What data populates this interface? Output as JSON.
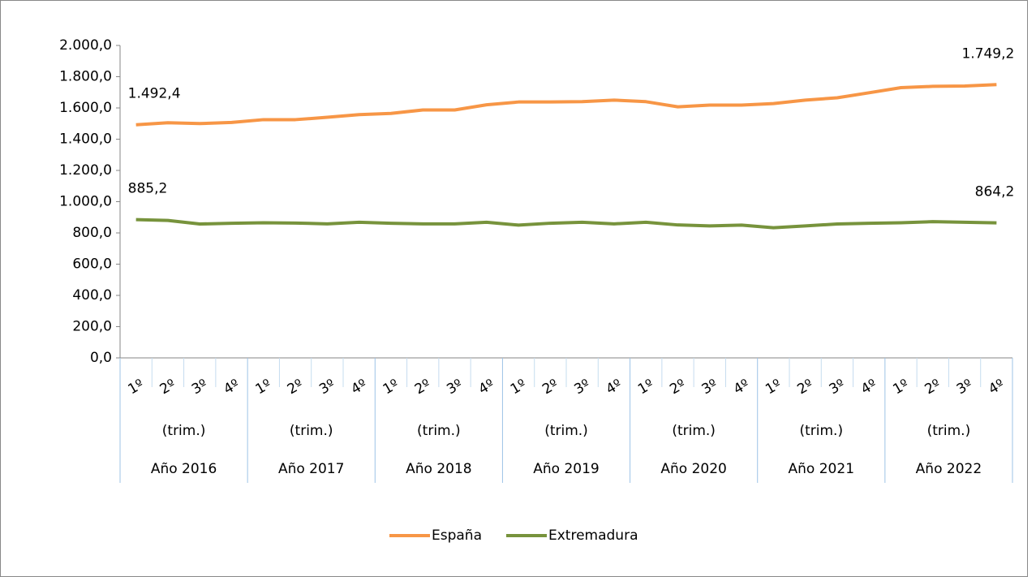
{
  "chart_data": {
    "type": "line",
    "categories": [
      "1º",
      "2º",
      "3º",
      "4º",
      "1º",
      "2º",
      "3º",
      "4º",
      "1º",
      "2º",
      "3º",
      "4º",
      "1º",
      "2º",
      "3º",
      "4º",
      "1º",
      "2º",
      "3º",
      "4º",
      "1º",
      "2º",
      "3º",
      "4º",
      "1º",
      "2º",
      "3º",
      "4º"
    ],
    "groups": [
      {
        "period": "(trim.)",
        "year": "Año 2016"
      },
      {
        "period": "(trim.)",
        "year": "Año 2017"
      },
      {
        "period": "(trim.)",
        "year": "Año 2018"
      },
      {
        "period": "(trim.)",
        "year": "Año 2019"
      },
      {
        "period": "(trim.)",
        "year": "Año 2020"
      },
      {
        "period": "(trim.)",
        "year": "Año 2021"
      },
      {
        "period": "(trim.)",
        "year": "Año 2022"
      }
    ],
    "series": [
      {
        "name": "España",
        "color": "#f79646",
        "values": [
          1492.4,
          1505,
          1500,
          1507,
          1525,
          1525,
          1540,
          1557,
          1565,
          1587,
          1587,
          1620,
          1638,
          1638,
          1640,
          1650,
          1640,
          1607,
          1618,
          1618,
          1628,
          1650,
          1665,
          1697,
          1730,
          1738,
          1740,
          1749.2
        ],
        "value_labels": [
          "1.492,4",
          null,
          null,
          null,
          null,
          null,
          null,
          null,
          null,
          null,
          null,
          null,
          null,
          null,
          null,
          null,
          null,
          null,
          null,
          null,
          null,
          null,
          null,
          null,
          null,
          null,
          null,
          "1.749,2"
        ]
      },
      {
        "name": "Extremadura",
        "color": "#77933c",
        "values": [
          885.2,
          880,
          857,
          862,
          865,
          863,
          858,
          868,
          862,
          858,
          858,
          868,
          850,
          862,
          868,
          858,
          868,
          851,
          845,
          850,
          833,
          845,
          857,
          862,
          865,
          872,
          868,
          864.2
        ],
        "value_labels": [
          "885,2",
          null,
          null,
          null,
          null,
          null,
          null,
          null,
          null,
          null,
          null,
          null,
          null,
          null,
          null,
          null,
          null,
          null,
          null,
          null,
          null,
          null,
          null,
          null,
          null,
          null,
          null,
          "864,2"
        ]
      }
    ],
    "ylim": [
      0,
      2000
    ],
    "yticks": [
      {
        "value": 0,
        "label": "0,0"
      },
      {
        "value": 200,
        "label": "200,0"
      },
      {
        "value": 400,
        "label": "400,0"
      },
      {
        "value": 600,
        "label": "600,0"
      },
      {
        "value": 800,
        "label": "800,0"
      },
      {
        "value": 1000,
        "label": "1.000,0"
      },
      {
        "value": 1200,
        "label": "1.200,0"
      },
      {
        "value": 1400,
        "label": "1.400,0"
      },
      {
        "value": 1600,
        "label": "1.600,0"
      },
      {
        "value": 1800,
        "label": "1.800,0"
      },
      {
        "value": 2000,
        "label": "2.000,0"
      }
    ],
    "grid": false,
    "legend": "bottom"
  }
}
